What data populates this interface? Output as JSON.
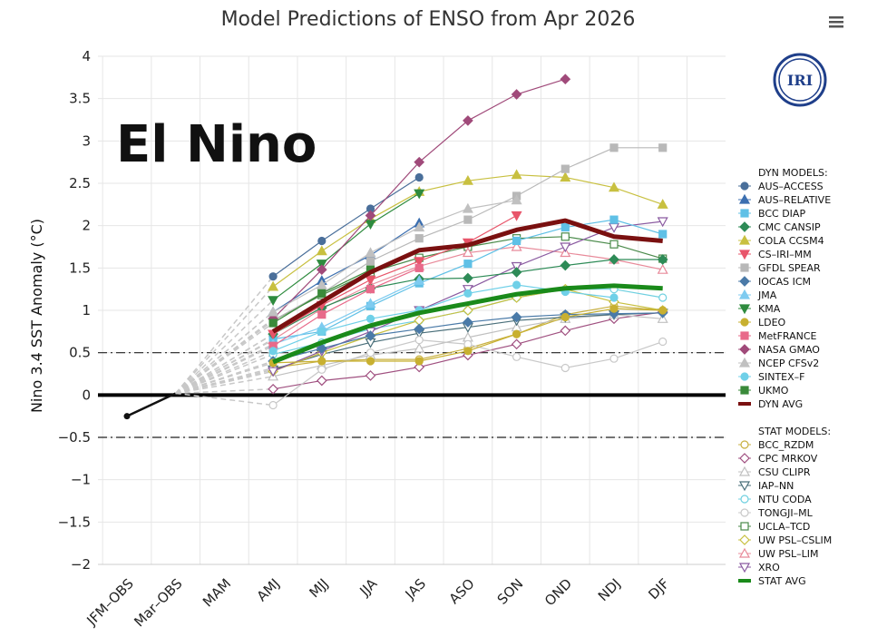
{
  "chart_data": {
    "type": "line",
    "title": "Model Predictions of ENSO from Apr 2026",
    "xlabel": "",
    "ylabel": "Nino 3.4 SST Anomaly (°C)",
    "ylim": [
      -2,
      4
    ],
    "yticks": [
      4,
      3.5,
      3,
      2.5,
      2,
      1.5,
      1,
      0.5,
      0,
      -0.5,
      -1,
      -1.5,
      -2
    ],
    "categories": [
      "JFM–OBS",
      "Mar–OBS",
      "MAM",
      "AMJ",
      "MJJ",
      "JJA",
      "JAS",
      "ASO",
      "SON",
      "OND",
      "NDJ",
      "DJF"
    ],
    "annotation": "El Nino",
    "thresholds": [
      0.5,
      -0.5
    ],
    "zero_line": 0,
    "logo_text": "IRI",
    "observed": {
      "name": "OBS",
      "color": "#111111",
      "values": [
        -0.25,
        0.02
      ]
    },
    "dyn_header": "DYN MODELS:",
    "stat_header": "STAT MODELS:",
    "dyn_series": [
      {
        "name": "AUS–ACCESS",
        "color": "#4a6f9a",
        "marker": "circle",
        "values": [
          1.4,
          1.82,
          2.2,
          2.57
        ]
      },
      {
        "name": "AUS–RELATIVE",
        "color": "#3c6fb0",
        "marker": "triangle",
        "values": [
          0.98,
          1.35,
          1.65,
          2.03
        ]
      },
      {
        "name": "BCC DIAP",
        "color": "#5fc0e6",
        "marker": "square",
        "values": [
          0.66,
          0.75,
          1.05,
          1.32,
          1.55,
          1.82,
          1.98,
          2.07,
          1.9
        ]
      },
      {
        "name": "CMC CANSIP",
        "color": "#2e8b57",
        "marker": "diamond",
        "values": [
          0.72,
          1.03,
          1.26,
          1.37,
          1.38,
          1.45,
          1.53,
          1.6,
          1.6
        ]
      },
      {
        "name": "COLA CCSM4",
        "color": "#c8c040",
        "marker": "triangle",
        "values": [
          1.28,
          1.7,
          2.08,
          2.4,
          2.53,
          2.6,
          2.57,
          2.45,
          2.25
        ]
      },
      {
        "name": "CS–IRI–MM",
        "color": "#e8556a",
        "marker": "triangle-down",
        "values": [
          0.72,
          1.06,
          1.36,
          1.58,
          1.8,
          2.12
        ]
      },
      {
        "name": "GFDL SPEAR",
        "color": "#b8b8b8",
        "marker": "square",
        "values": [
          0.88,
          1.2,
          1.58,
          1.85,
          2.07,
          2.35,
          2.67,
          2.92,
          2.92
        ]
      },
      {
        "name": "IOCAS ICM",
        "color": "#4a7aa8",
        "marker": "diamond",
        "values": [
          0.4,
          0.55,
          0.7,
          0.78,
          0.86,
          0.92,
          0.95,
          0.96,
          0.97
        ]
      },
      {
        "name": "JMA",
        "color": "#7ecbf0",
        "marker": "triangle",
        "values": [
          0.6,
          0.8,
          1.08,
          1.35
        ]
      },
      {
        "name": "KMA",
        "color": "#2e8b3e",
        "marker": "triangle-down",
        "values": [
          1.12,
          1.55,
          2.02,
          2.38
        ]
      },
      {
        "name": "LDEO",
        "color": "#c8b030",
        "marker": "circle",
        "values": [
          0.38,
          0.4,
          0.4,
          0.4,
          0.52,
          0.72,
          0.92,
          1.02,
          1.0
        ]
      },
      {
        "name": "MetFRANCE",
        "color": "#e86a8a",
        "marker": "square",
        "values": [
          0.58,
          0.95,
          1.25,
          1.5
        ]
      },
      {
        "name": "NASA GMAO",
        "color": "#a04a7a",
        "marker": "diamond",
        "values": [
          0.9,
          1.48,
          2.12,
          2.75,
          3.24,
          3.55,
          3.73
        ]
      },
      {
        "name": "NCEP CFSv2",
        "color": "#c0c0c0",
        "marker": "triangle",
        "values": [
          0.98,
          1.3,
          1.68,
          1.98,
          2.2,
          2.3
        ]
      },
      {
        "name": "SINTEX–F",
        "color": "#6fd0e8",
        "marker": "circle",
        "values": [
          0.52,
          0.75,
          0.9,
          1.0,
          1.2,
          1.3,
          1.22,
          1.15
        ]
      },
      {
        "name": "UKMO",
        "color": "#3a8a3a",
        "marker": "square",
        "values": [
          0.85,
          1.2,
          1.48
        ]
      },
      {
        "name": "DYN AVG",
        "color": "#7a1010",
        "marker": "thick",
        "values": [
          0.75,
          1.1,
          1.45,
          1.71,
          1.77,
          1.95,
          2.06,
          1.87,
          1.82
        ]
      }
    ],
    "stat_series": [
      {
        "name": "BCC_RZDM",
        "color": "#c8b040",
        "marker": "circle-open",
        "values": [
          0.32,
          0.4,
          0.42,
          0.42,
          0.55,
          0.72,
          0.95,
          1.05,
          1.0
        ]
      },
      {
        "name": "CPC MRKOV",
        "color": "#a05080",
        "marker": "diamond-open",
        "values": [
          0.07,
          0.17,
          0.23,
          0.33,
          0.47,
          0.6,
          0.76,
          0.9,
          0.98
        ]
      },
      {
        "name": "CSU CLIPR",
        "color": "#c0c0c0",
        "marker": "triangle-open",
        "values": [
          0.22,
          0.35,
          0.47,
          0.55,
          0.68,
          0.8,
          0.9,
          0.95,
          0.9
        ]
      },
      {
        "name": "IAP–NN",
        "color": "#4a6f7a",
        "marker": "triangle-down-open",
        "values": [
          0.3,
          0.48,
          0.62,
          0.73,
          0.8,
          0.88,
          0.92,
          0.95,
          0.97
        ]
      },
      {
        "name": "NTU CODA",
        "color": "#6fd0e0",
        "marker": "circle-open",
        "values": [
          0.48,
          0.62,
          0.78,
          0.88,
          1.0,
          1.15,
          1.25,
          1.25,
          1.15
        ]
      },
      {
        "name": "TONGJI–ML",
        "color": "#c8c8c8",
        "marker": "circle-open",
        "values": [
          -0.12,
          0.3,
          0.5,
          0.65,
          0.6,
          0.45,
          0.32,
          0.43,
          0.63
        ]
      },
      {
        "name": "UCLA–TCD",
        "color": "#4a8a4a",
        "marker": "square-open",
        "values": [
          0.88,
          1.18,
          1.45,
          1.62,
          1.75,
          1.85,
          1.87,
          1.78,
          1.61
        ]
      },
      {
        "name": "UW PSL–CSLIM",
        "color": "#c8c040",
        "marker": "diamond-open",
        "values": [
          0.28,
          0.5,
          0.7,
          0.88,
          1.0,
          1.15,
          1.25,
          1.1,
          1.0
        ]
      },
      {
        "name": "UW PSL–LIM",
        "color": "#e88a9a",
        "marker": "triangle-open",
        "values": [
          0.65,
          1.02,
          1.3,
          1.52,
          1.68,
          1.75,
          1.68,
          1.6,
          1.48
        ]
      },
      {
        "name": "XRO",
        "color": "#8a5aa0",
        "marker": "triangle-down-open",
        "values": [
          0.28,
          0.52,
          0.75,
          1.0,
          1.25,
          1.52,
          1.75,
          1.98,
          2.05
        ]
      },
      {
        "name": "STAT AVG",
        "color": "#1a8a1a",
        "marker": "thick",
        "values": [
          0.39,
          0.62,
          0.82,
          0.97,
          1.08,
          1.19,
          1.26,
          1.29,
          1.26
        ]
      }
    ]
  },
  "menu": {
    "icon": "hamburger-menu-icon"
  }
}
